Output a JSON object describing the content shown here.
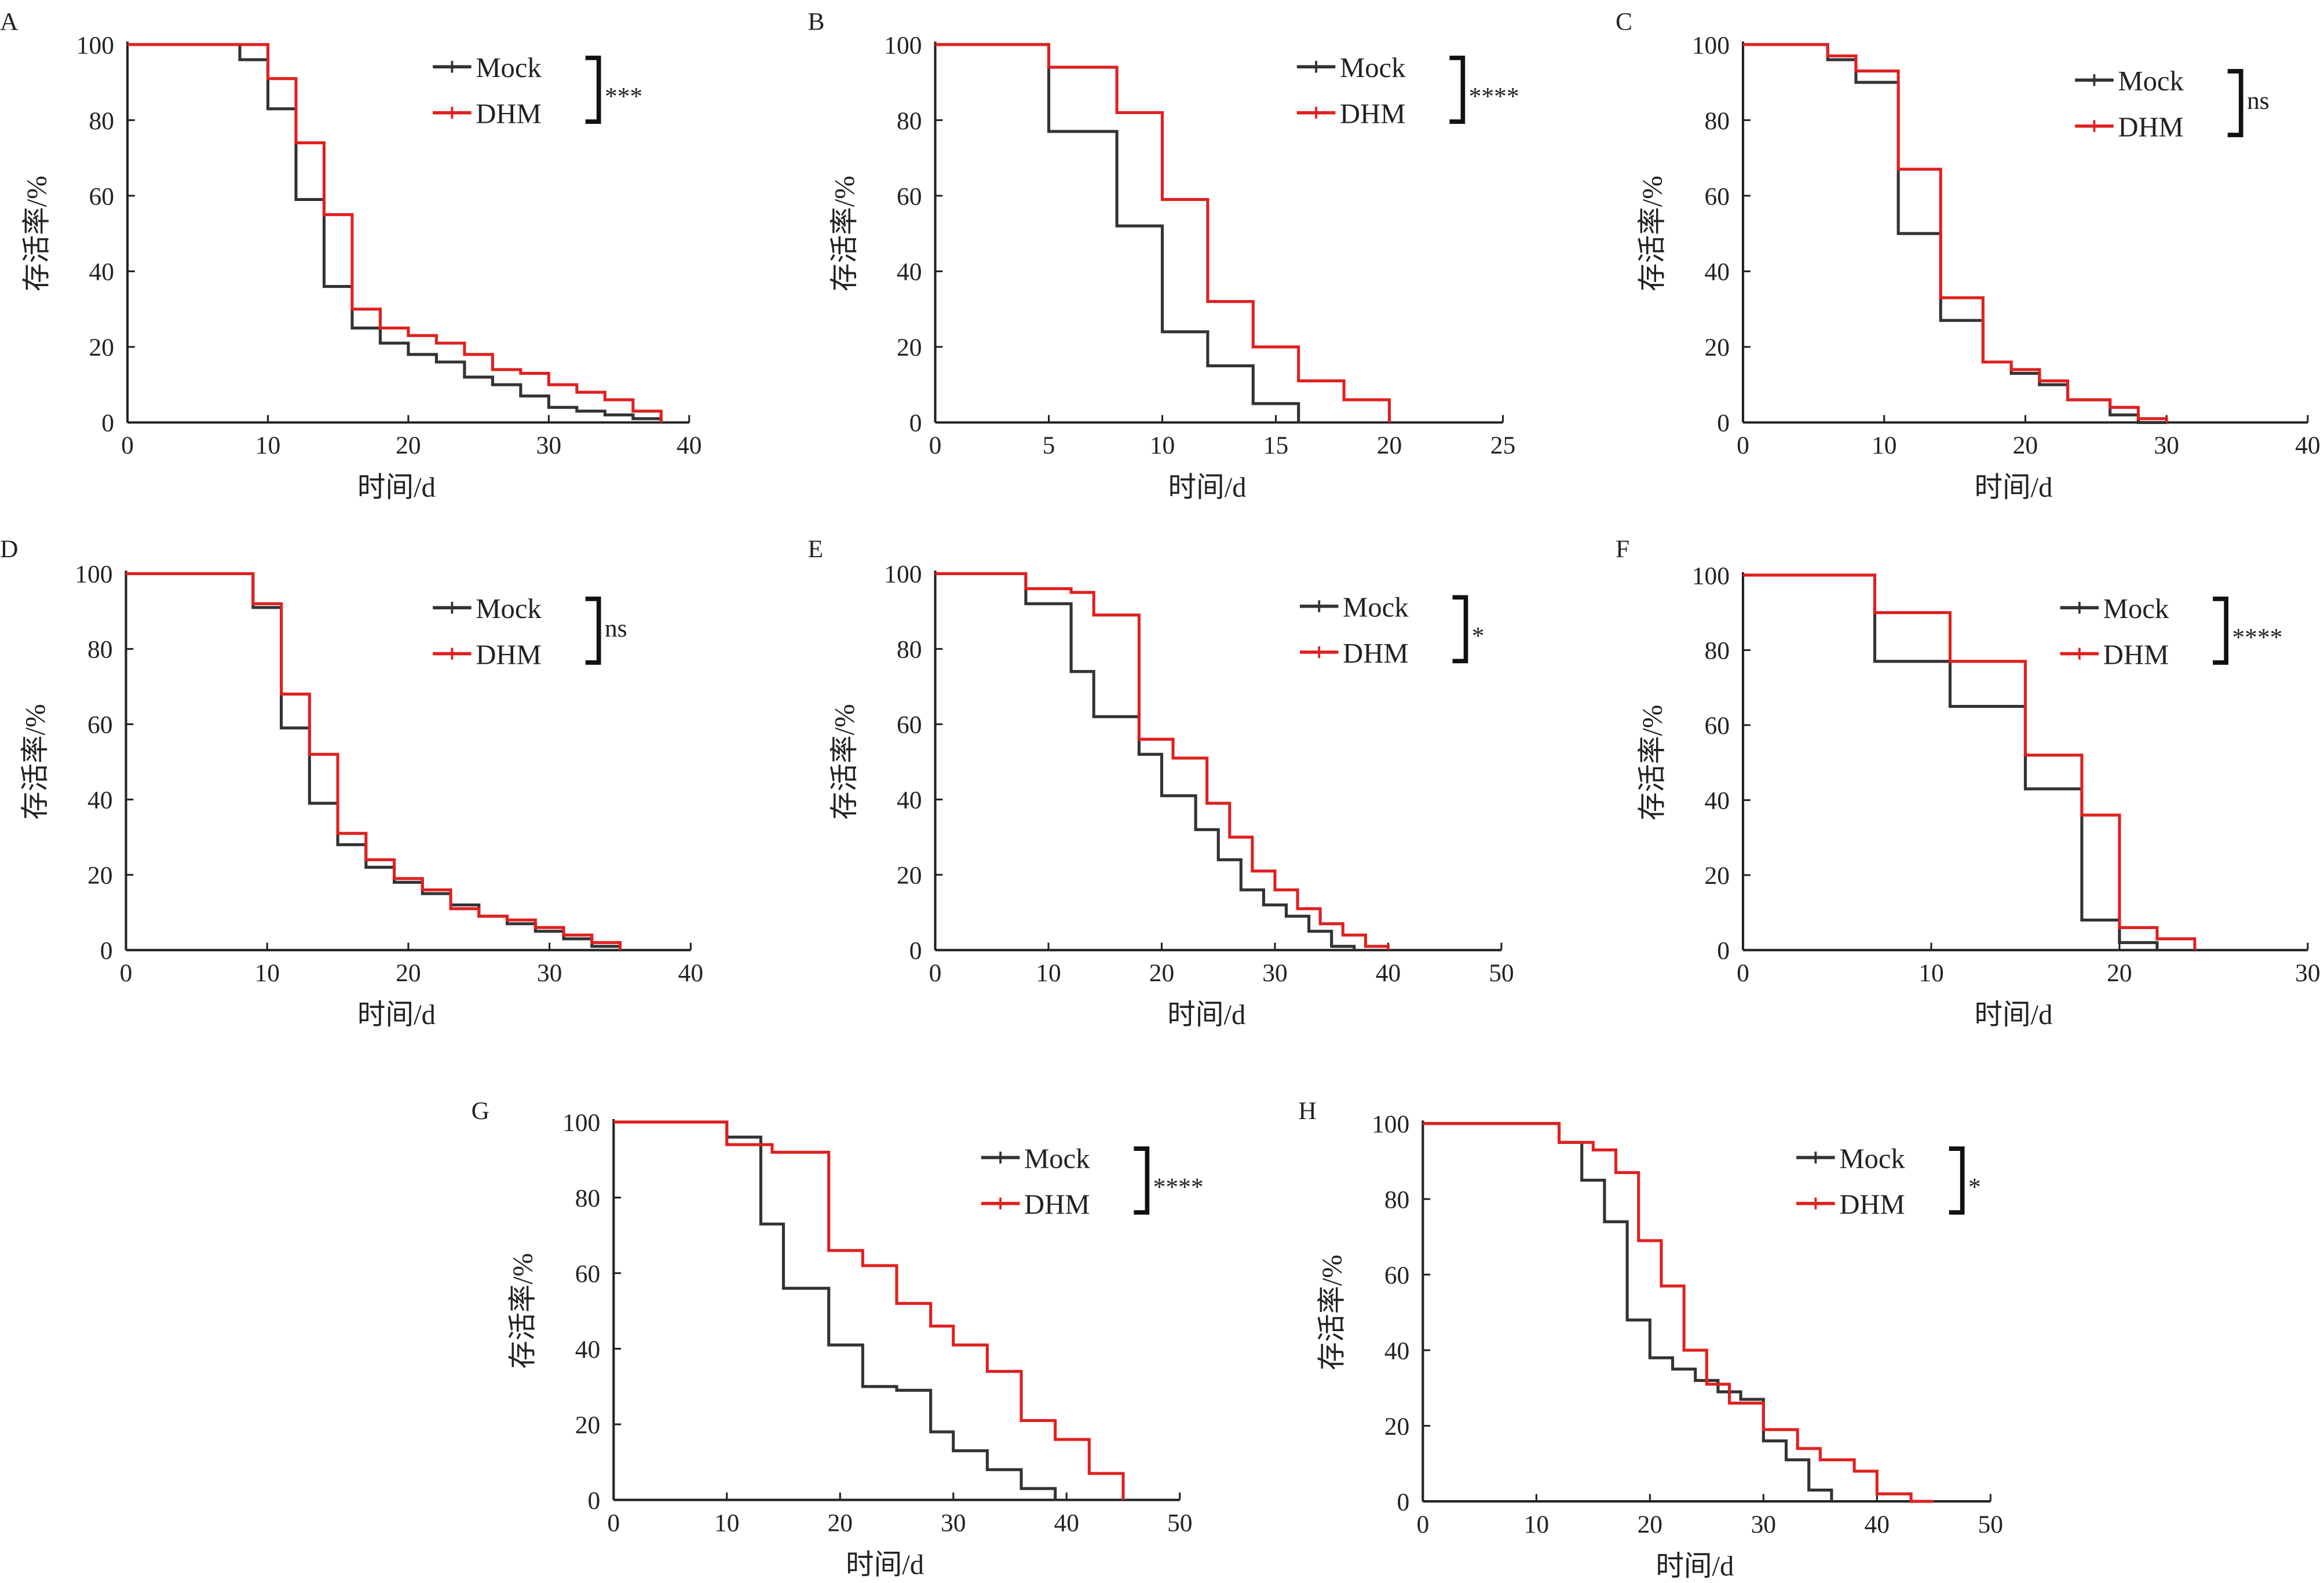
{
  "chart_data": [
    {
      "panel": "A",
      "type": "line",
      "xlabel": "时间/d",
      "ylabel": "存活率/%",
      "xlim": [
        0,
        40
      ],
      "ylim": [
        0,
        100
      ],
      "xticks": [
        0,
        10,
        20,
        30,
        40
      ],
      "yticks": [
        0,
        20,
        40,
        60,
        80,
        100
      ],
      "significance": "***",
      "legend_position": "top-right",
      "series": [
        {
          "name": "Mock",
          "color": "#333333",
          "x": [
            0,
            8,
            10,
            12,
            14,
            16,
            18,
            20,
            22,
            24,
            26,
            28,
            30,
            32,
            34,
            36,
            38
          ],
          "y": [
            100,
            96,
            83,
            59,
            36,
            25,
            21,
            18,
            16,
            12,
            10,
            7,
            4,
            3,
            2,
            1,
            0
          ]
        },
        {
          "name": "DHM",
          "color": "#e02020",
          "x": [
            0,
            10,
            12,
            14,
            16,
            18,
            20,
            22,
            24,
            26,
            28,
            30,
            32,
            34,
            36,
            38
          ],
          "y": [
            100,
            91,
            74,
            55,
            30,
            25,
            23,
            21,
            18,
            14,
            13,
            10,
            8,
            6,
            3,
            0
          ]
        }
      ]
    },
    {
      "panel": "B",
      "type": "line",
      "xlabel": "时间/d",
      "ylabel": "存活率/%",
      "xlim": [
        0,
        25
      ],
      "ylim": [
        0,
        100
      ],
      "xticks": [
        0,
        5,
        10,
        15,
        20,
        25
      ],
      "yticks": [
        0,
        20,
        40,
        60,
        80,
        100
      ],
      "significance": "****",
      "legend_position": "top-right",
      "series": [
        {
          "name": "Mock",
          "color": "#333333",
          "x": [
            0,
            5,
            8,
            10,
            12,
            14,
            16
          ],
          "y": [
            100,
            77,
            52,
            24,
            15,
            5,
            0
          ]
        },
        {
          "name": "DHM",
          "color": "#e02020",
          "x": [
            0,
            5,
            8,
            10,
            12,
            14,
            16,
            18,
            20
          ],
          "y": [
            100,
            94,
            82,
            59,
            32,
            20,
            11,
            6,
            0
          ]
        }
      ]
    },
    {
      "panel": "C",
      "type": "line",
      "xlabel": "时间/d",
      "ylabel": "存活率/%",
      "xlim": [
        0,
        40
      ],
      "ylim": [
        0,
        100
      ],
      "xticks": [
        0,
        10,
        20,
        30,
        40
      ],
      "yticks": [
        0,
        20,
        40,
        60,
        80,
        100
      ],
      "significance": "ns",
      "legend_position": "top-right",
      "series": [
        {
          "name": "Mock",
          "color": "#333333",
          "x": [
            0,
            6,
            8,
            11,
            14,
            17,
            19,
            21,
            23,
            26,
            28,
            30
          ],
          "y": [
            100,
            96,
            90,
            50,
            27,
            16,
            13,
            10,
            6,
            2,
            0,
            0
          ]
        },
        {
          "name": "DHM",
          "color": "#e02020",
          "x": [
            0,
            6,
            8,
            11,
            14,
            17,
            19,
            21,
            23,
            26,
            28,
            30
          ],
          "y": [
            100,
            97,
            93,
            67,
            33,
            16,
            14,
            11,
            6,
            4,
            1,
            0
          ]
        }
      ]
    },
    {
      "panel": "D",
      "type": "line",
      "xlabel": "时间/d",
      "ylabel": "存活率/%",
      "xlim": [
        0,
        40
      ],
      "ylim": [
        0,
        100
      ],
      "xticks": [
        0,
        10,
        20,
        30,
        40
      ],
      "yticks": [
        0,
        20,
        40,
        60,
        80,
        100
      ],
      "significance": "ns",
      "legend_position": "top-right",
      "series": [
        {
          "name": "Mock",
          "color": "#333333",
          "x": [
            0,
            9,
            11,
            13,
            15,
            17,
            19,
            21,
            23,
            25,
            27,
            29,
            31,
            33,
            35
          ],
          "y": [
            100,
            91,
            59,
            39,
            28,
            22,
            18,
            15,
            12,
            9,
            7,
            5,
            3,
            1,
            0
          ]
        },
        {
          "name": "DHM",
          "color": "#e02020",
          "x": [
            0,
            9,
            11,
            13,
            15,
            17,
            19,
            21,
            23,
            25,
            27,
            29,
            31,
            33,
            35
          ],
          "y": [
            100,
            92,
            68,
            52,
            31,
            24,
            19,
            16,
            11,
            9,
            8,
            6,
            4,
            2,
            0
          ]
        }
      ]
    },
    {
      "panel": "E",
      "type": "line",
      "xlabel": "时间/d",
      "ylabel": "存活率/%",
      "xlim": [
        0,
        50
      ],
      "ylim": [
        0,
        100
      ],
      "xticks": [
        0,
        10,
        20,
        30,
        40,
        50
      ],
      "yticks": [
        0,
        20,
        40,
        60,
        80,
        100
      ],
      "significance": "*",
      "legend_position": "top-right",
      "series": [
        {
          "name": "Mock",
          "color": "#333333",
          "x": [
            0,
            8,
            12,
            14,
            18,
            20,
            23,
            25,
            27,
            29,
            31,
            33,
            35,
            37
          ],
          "y": [
            100,
            92,
            74,
            62,
            52,
            41,
            32,
            24,
            16,
            12,
            9,
            5,
            1,
            0
          ]
        },
        {
          "name": "DHM",
          "color": "#e02020",
          "x": [
            0,
            8,
            12,
            14,
            18,
            21,
            24,
            26,
            28,
            30,
            32,
            34,
            36,
            38,
            40
          ],
          "y": [
            100,
            96,
            95,
            89,
            56,
            51,
            39,
            30,
            21,
            16,
            11,
            7,
            4,
            1,
            0
          ]
        }
      ]
    },
    {
      "panel": "F",
      "type": "line",
      "xlabel": "时间/d",
      "ylabel": "存活率/%",
      "xlim": [
        0,
        30
      ],
      "ylim": [
        0,
        100
      ],
      "xticks": [
        0,
        10,
        20,
        30
      ],
      "yticks": [
        0,
        20,
        40,
        60,
        80,
        100
      ],
      "significance": "****",
      "legend_position": "top-right",
      "series": [
        {
          "name": "Mock",
          "color": "#333333",
          "x": [
            0,
            7,
            11,
            15,
            18,
            20,
            22
          ],
          "y": [
            100,
            77,
            65,
            43,
            8,
            2,
            0
          ]
        },
        {
          "name": "DHM",
          "color": "#e02020",
          "x": [
            0,
            7,
            11,
            15,
            18,
            20,
            22,
            24
          ],
          "y": [
            100,
            90,
            77,
            52,
            36,
            6,
            3,
            0
          ]
        }
      ]
    },
    {
      "panel": "G",
      "type": "line",
      "xlabel": "时间/d",
      "ylabel": "存活率/%",
      "xlim": [
        0,
        50
      ],
      "ylim": [
        0,
        100
      ],
      "xticks": [
        0,
        10,
        20,
        30,
        40,
        50
      ],
      "yticks": [
        0,
        20,
        40,
        60,
        80,
        100
      ],
      "significance": "****",
      "legend_position": "top-right",
      "series": [
        {
          "name": "Mock",
          "color": "#333333",
          "x": [
            0,
            10,
            13,
            15,
            19,
            22,
            25,
            28,
            30,
            33,
            36,
            39
          ],
          "y": [
            100,
            96,
            73,
            56,
            41,
            30,
            29,
            18,
            13,
            8,
            3,
            0
          ]
        },
        {
          "name": "DHM",
          "color": "#e02020",
          "x": [
            0,
            10,
            14,
            19,
            22,
            25,
            28,
            30,
            33,
            36,
            39,
            42,
            45
          ],
          "y": [
            100,
            94,
            92,
            66,
            62,
            52,
            46,
            41,
            34,
            21,
            16,
            7,
            0
          ]
        }
      ]
    },
    {
      "panel": "H",
      "type": "line",
      "xlabel": "时间/d",
      "ylabel": "存活率/%",
      "xlim": [
        0,
        50
      ],
      "ylim": [
        0,
        100
      ],
      "xticks": [
        0,
        10,
        20,
        30,
        40,
        50
      ],
      "yticks": [
        0,
        20,
        40,
        60,
        80,
        100
      ],
      "significance": "*",
      "legend_position": "top-right",
      "series": [
        {
          "name": "Mock",
          "color": "#333333",
          "x": [
            0,
            12,
            14,
            16,
            18,
            20,
            22,
            24,
            26,
            28,
            30,
            32,
            34,
            36
          ],
          "y": [
            100,
            95,
            85,
            74,
            48,
            38,
            35,
            32,
            29,
            27,
            16,
            11,
            3,
            0
          ]
        },
        {
          "name": "DHM",
          "color": "#e02020",
          "x": [
            0,
            12,
            15,
            17,
            19,
            21,
            23,
            25,
            27,
            30,
            33,
            35,
            38,
            40,
            43,
            45
          ],
          "y": [
            100,
            95,
            93,
            87,
            69,
            57,
            40,
            31,
            26,
            19,
            14,
            11,
            8,
            2,
            0,
            0
          ]
        }
      ]
    }
  ]
}
